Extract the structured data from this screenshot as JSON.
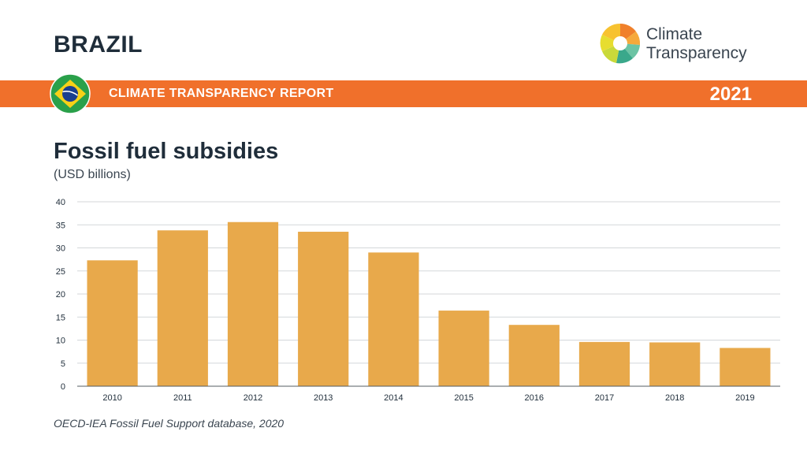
{
  "header": {
    "country": "BRAZIL",
    "report_label": "CLIMATE TRANSPARENCY REPORT",
    "year": "2021",
    "logo_line1": "Climate",
    "logo_line2": "Transparency"
  },
  "colors": {
    "banner": "#f0702b",
    "bar": "#e8a94b",
    "flag_green": "#2aa04a",
    "flag_yellow": "#f7d117",
    "flag_blue": "#1b3f8f"
  },
  "chart_data": {
    "type": "bar",
    "title": "Fossil fuel subsidies",
    "ylabel": "(USD billions)",
    "xlabel": "",
    "categories": [
      "2010",
      "2011",
      "2012",
      "2013",
      "2014",
      "2015",
      "2016",
      "2017",
      "2018",
      "2019"
    ],
    "values": [
      27.3,
      33.8,
      35.6,
      33.5,
      29.0,
      16.4,
      13.3,
      9.6,
      9.5,
      8.3
    ],
    "ylim": [
      0,
      40
    ],
    "yticks": [
      0,
      5,
      10,
      15,
      20,
      25,
      30,
      35,
      40
    ],
    "grid": true,
    "source": "OECD-IEA Fossil Fuel Support database, 2020"
  }
}
